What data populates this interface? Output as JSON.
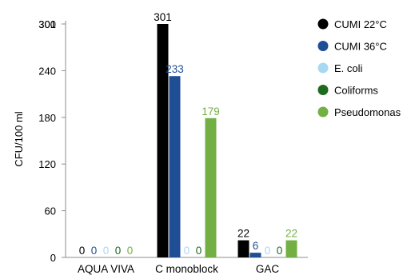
{
  "chart_data": {
    "type": "bar",
    "ylabel": "CFU/100 ml",
    "xlabel": "",
    "ylim": [
      0,
      300
    ],
    "yticks": [
      0,
      60,
      120,
      180,
      240,
      300
    ],
    "ytick_labels": [
      "0",
      "60",
      "120",
      "180",
      "240",
      "300"
    ],
    "overlapped_top_tick": "301",
    "grid": false,
    "legend_position": "right",
    "categories": [
      "AQUA VIVA",
      "C monoblock",
      "GAC"
    ],
    "series": [
      {
        "name": "CUMI 22°C",
        "color": "#000000",
        "label_color": "#000000",
        "values": [
          0,
          301,
          22
        ],
        "labels": [
          "0",
          "301",
          "22"
        ]
      },
      {
        "name": "CUMI 36°C",
        "color": "#1f4e96",
        "label_color": "#1f4e96",
        "values": [
          0,
          233,
          6
        ],
        "labels": [
          "0",
          "233",
          "6"
        ]
      },
      {
        "name": "E. coli",
        "color": "#a9d8f2",
        "label_color": "#a9d8f2",
        "values": [
          0,
          0,
          0
        ],
        "labels": [
          "0",
          "0",
          "0"
        ]
      },
      {
        "name": "Coliforms",
        "color": "#1e6b1e",
        "label_color": "#1e6b1e",
        "values": [
          0,
          0,
          0
        ],
        "labels": [
          "0",
          "0",
          "0"
        ]
      },
      {
        "name": "Pseudomonas",
        "color": "#72b043",
        "label_color": "#72b043",
        "values": [
          0,
          179,
          22
        ],
        "labels": [
          "0",
          "179",
          "22"
        ]
      }
    ]
  }
}
